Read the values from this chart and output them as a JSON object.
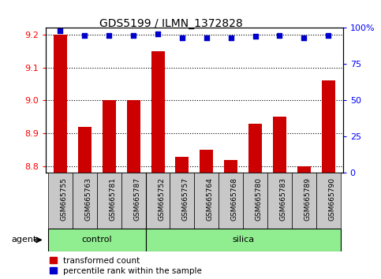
{
  "title": "GDS5199 / ILMN_1372828",
  "samples": [
    "GSM665755",
    "GSM665763",
    "GSM665781",
    "GSM665787",
    "GSM665752",
    "GSM665757",
    "GSM665764",
    "GSM665768",
    "GSM665780",
    "GSM665783",
    "GSM665789",
    "GSM665790"
  ],
  "transformed_count": [
    9.2,
    8.92,
    9.0,
    9.0,
    9.15,
    8.83,
    8.85,
    8.82,
    8.93,
    8.95,
    8.8,
    9.06
  ],
  "percentile_rank": [
    98,
    95,
    95,
    95,
    96,
    93,
    93,
    93,
    94,
    95,
    93,
    95
  ],
  "group_divider": 4,
  "control_label": "control",
  "silica_label": "silica",
  "bar_color": "#cc0000",
  "dot_color": "#0000cc",
  "ylim_left": [
    8.78,
    9.22
  ],
  "ylim_right": [
    0,
    100
  ],
  "yticks_left": [
    8.8,
    8.9,
    9.0,
    9.1,
    9.2
  ],
  "yticks_right": [
    0,
    25,
    50,
    75,
    100
  ],
  "ytick_labels_right": [
    "0",
    "25",
    "50",
    "75",
    "100%"
  ],
  "agent_label": "agent",
  "legend_items": [
    "transformed count",
    "percentile rank within the sample"
  ],
  "legend_colors": [
    "#cc0000",
    "#0000cc"
  ],
  "bg_color": "#d3d3d3",
  "plot_bg": "#ffffff",
  "group_bg": "#90ee90",
  "xtick_bg": "#c8c8c8"
}
